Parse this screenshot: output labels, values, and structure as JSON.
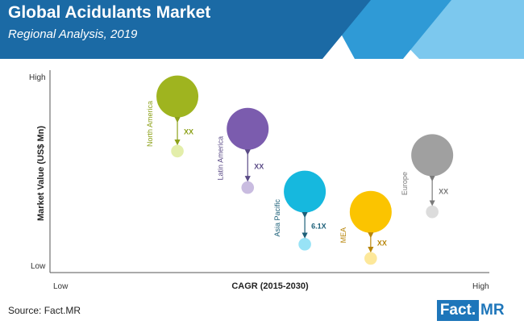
{
  "header": {
    "title": "Global Acidulants Market",
    "subtitle": "Regional Analysis, 2019"
  },
  "colors": {
    "banner_dark": "#1b6aa5",
    "banner_mid": "#2f9ad6",
    "banner_light": "#7cc8ee",
    "axis": "#555555",
    "logo_blue": "#1e76ba"
  },
  "chart_data": {
    "type": "scatter",
    "title": "",
    "xlabel": "CAGR (2015-2030)",
    "ylabel": "Market Value (US$ Mn)",
    "x_ticks": {
      "low": "Low",
      "high": "High"
    },
    "y_ticks": {
      "low": "Low",
      "high": "High"
    },
    "xlim": [
      0,
      100
    ],
    "ylim": [
      0,
      100
    ],
    "grid": false,
    "series": [
      {
        "name": "North America",
        "color_big": "#9fb41f",
        "color_small": "#e3eeaa",
        "growth_label": "XX",
        "label_color": "#8da11a",
        "x": 29,
        "y_high": 87,
        "y_low": 60,
        "size_big": 100,
        "size_small": 50
      },
      {
        "name": "Latin America",
        "color_big": "#7b5cae",
        "color_small": "#c9bce0",
        "growth_label": "XX",
        "label_color": "#5a4a86",
        "x": 45,
        "y_high": 71,
        "y_low": 42,
        "size_big": 100,
        "size_small": 50
      },
      {
        "name": "Asia Pacific",
        "color_big": "#16b8de",
        "color_small": "#98e3f6",
        "growth_label": "6.1X",
        "label_color": "#1b5f78",
        "x": 58,
        "y_high": 40,
        "y_low": 14,
        "size_big": 100,
        "size_small": 50
      },
      {
        "name": "MEA",
        "color_big": "#fbc400",
        "color_small": "#fde89a",
        "growth_label": "XX",
        "label_color": "#b8860b",
        "x": 73,
        "y_high": 30,
        "y_low": 7,
        "size_big": 100,
        "size_small": 50
      },
      {
        "name": "Europe",
        "color_big": "#a0a0a0",
        "color_small": "#dcdcdc",
        "growth_label": "XX",
        "label_color": "#7a7a7a",
        "x": 87,
        "y_high": 58,
        "y_low": 30,
        "size_big": 100,
        "size_small": 50
      }
    ]
  },
  "footer": {
    "source": "Source: Fact.MR",
    "logo_left": "Fact.",
    "logo_right": "MR"
  }
}
